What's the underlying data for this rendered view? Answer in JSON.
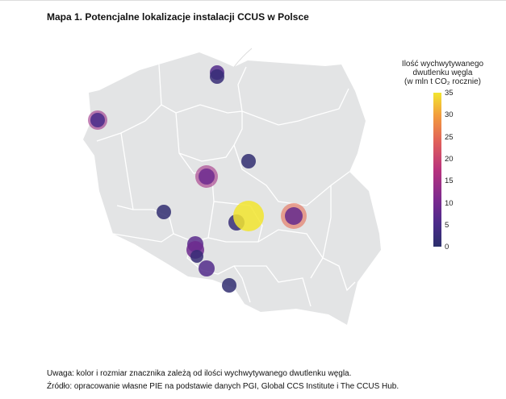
{
  "title": "Mapa 1. Potencjalne lokalizacje instalacji CCUS w Polsce",
  "legend": {
    "title_line1": "Ilość wychwytywanego",
    "title_line2": "dwutlenku węgla",
    "title_line3": "(w mln t CO₂ rocznie)",
    "ticks": [
      "35",
      "30",
      "25",
      "20",
      "15",
      "10",
      "5",
      "0"
    ],
    "range": [
      0,
      35
    ]
  },
  "colors": {
    "land": "#e3e4e5",
    "border": "#ffffff",
    "low": "#2b3a86",
    "high": "#f2e52f"
  },
  "sites": [
    {
      "name": "site-gdansk-a",
      "value": 6
    },
    {
      "name": "site-gdansk-b",
      "value": 2
    },
    {
      "name": "site-szczecin-ring",
      "value": 14
    },
    {
      "name": "site-szczecin",
      "value": 5
    },
    {
      "name": "site-konin-ring",
      "value": 15
    },
    {
      "name": "site-konin",
      "value": 9
    },
    {
      "name": "site-plock",
      "value": 1
    },
    {
      "name": "site-wielkopolska",
      "value": 1
    },
    {
      "name": "site-belchatow-small",
      "value": 2
    },
    {
      "name": "site-belchatow",
      "value": 35
    },
    {
      "name": "site-kozienice-ring",
      "value": 25
    },
    {
      "name": "site-kozienice",
      "value": 8
    },
    {
      "name": "site-opole-a",
      "value": 7
    },
    {
      "name": "site-opole-b",
      "value": 9
    },
    {
      "name": "site-opole-c",
      "value": 2
    },
    {
      "name": "site-silesia",
      "value": 6
    },
    {
      "name": "site-bielsko",
      "value": 1
    }
  ],
  "notes": {
    "note1": "Uwaga: kolor i rozmiar znacznika zależą od ilości wychwytywanego dwutlenku węgla.",
    "note2": "Źródło: opracowanie własne PIE na podstawie danych PGI, Global CCS Institute i The CCUS Hub."
  }
}
